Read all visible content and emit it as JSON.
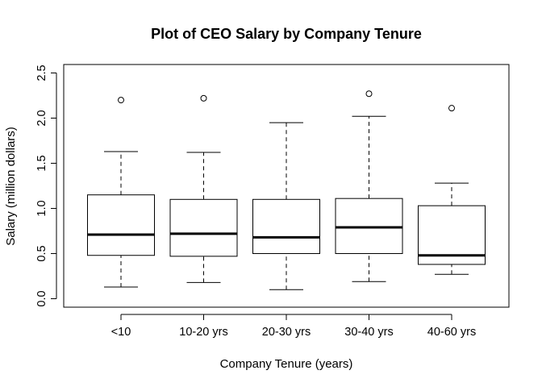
{
  "chart_data": {
    "type": "boxplot",
    "title": "Plot of CEO Salary by Company Tenure",
    "xlabel": "Company Tenure (years)",
    "ylabel": "Salary (million dollars)",
    "ylim": [
      -0.1,
      2.6
    ],
    "yticks": [
      "0.0",
      "0.5",
      "1.0",
      "1.5",
      "2.0",
      "2.5"
    ],
    "categories": [
      "<10",
      "10-20 yrs",
      "20-30 yrs",
      "30-40 yrs",
      "40-60 yrs"
    ],
    "boxes": [
      {
        "category": "<10",
        "whisker_low": 0.13,
        "q1": 0.48,
        "median": 0.71,
        "q3": 1.15,
        "whisker_high": 1.63,
        "outliers": [
          2.2
        ]
      },
      {
        "category": "10-20 yrs",
        "whisker_low": 0.18,
        "q1": 0.47,
        "median": 0.72,
        "q3": 1.1,
        "whisker_high": 1.62,
        "outliers": [
          2.22
        ]
      },
      {
        "category": "20-30 yrs",
        "whisker_low": 0.1,
        "q1": 0.5,
        "median": 0.68,
        "q3": 1.1,
        "whisker_high": 1.95,
        "outliers": []
      },
      {
        "category": "30-40 yrs",
        "whisker_low": 0.19,
        "q1": 0.5,
        "median": 0.79,
        "q3": 1.11,
        "whisker_high": 2.02,
        "outliers": [
          2.27
        ]
      },
      {
        "category": "40-60 yrs",
        "whisker_low": 0.27,
        "q1": 0.38,
        "median": 0.48,
        "q3": 1.03,
        "whisker_high": 1.28,
        "outliers": [
          2.11
        ]
      }
    ]
  }
}
